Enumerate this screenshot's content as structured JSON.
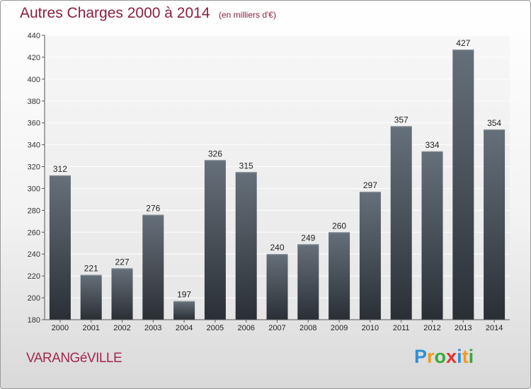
{
  "header": {
    "title": "Autres Charges 2000 à 2014",
    "subtitle": "(en milliers d'€)"
  },
  "footer": {
    "commune": "VARANGéVILLE",
    "logo_letters": [
      "P",
      "r",
      "o",
      "x",
      "i",
      "t",
      "i"
    ],
    "logo_colors": [
      "#2e8fd6",
      "#f29a1f",
      "#3aa93a",
      "#e8312f",
      "#2e8fd6",
      "#f29a1f",
      "#3aa93a"
    ]
  },
  "colors": {
    "title": "#8a1f3c",
    "bar_top": "#66707a",
    "bar_bottom": "#2a2f35",
    "plot_bg_top": "#f7f7f7",
    "plot_bg_bottom": "#e6e6e6",
    "grid": "#ffffff"
  },
  "chart_data": {
    "type": "bar",
    "categories": [
      "2000",
      "2001",
      "2002",
      "2003",
      "2004",
      "2005",
      "2006",
      "2007",
      "2008",
      "2009",
      "2010",
      "2011",
      "2012",
      "2013",
      "2014"
    ],
    "values": [
      312,
      221,
      227,
      276,
      197,
      326,
      315,
      240,
      249,
      260,
      297,
      357,
      334,
      427,
      354
    ],
    "data_labels": [
      "312",
      "221",
      "227",
      "276",
      "197",
      "326",
      "315",
      "240",
      "249",
      "260",
      "297",
      "357",
      "334",
      "427",
      "354"
    ],
    "title": "Autres Charges 2000 à 2014",
    "xlabel": "",
    "ylabel": "",
    "ylim": [
      180,
      440
    ],
    "yticks": [
      180,
      200,
      220,
      240,
      260,
      280,
      300,
      320,
      340,
      360,
      380,
      400,
      420,
      440
    ],
    "grid": true,
    "legend": "none"
  }
}
